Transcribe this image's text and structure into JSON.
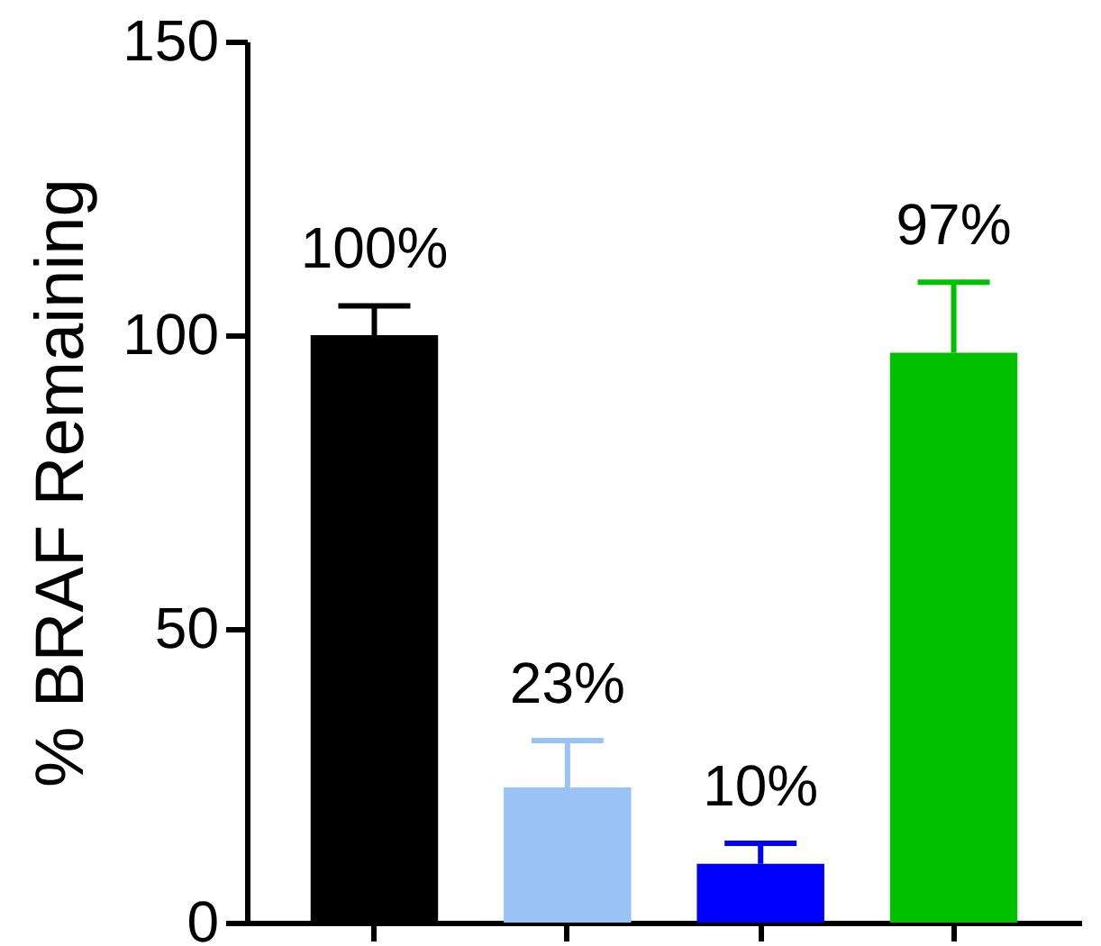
{
  "chart_data": {
    "type": "bar",
    "ylabel": "% BRAF Remaining",
    "categories": [
      null,
      null,
      null,
      null
    ],
    "values": [
      100,
      23,
      10,
      97
    ],
    "colors": [
      "#000000",
      "#99c2f5",
      "#0000ff",
      "#00c000"
    ],
    "errors": [
      [
        100,
        105
      ],
      [
        23,
        31
      ],
      [
        10,
        13.5
      ],
      [
        97,
        109
      ]
    ],
    "value_labels": [
      "100%",
      "23%",
      "10%",
      "97%"
    ],
    "ylim": [
      0,
      150
    ],
    "yticks": [
      0,
      50,
      100,
      150
    ],
    "grid": false,
    "legend": false
  }
}
